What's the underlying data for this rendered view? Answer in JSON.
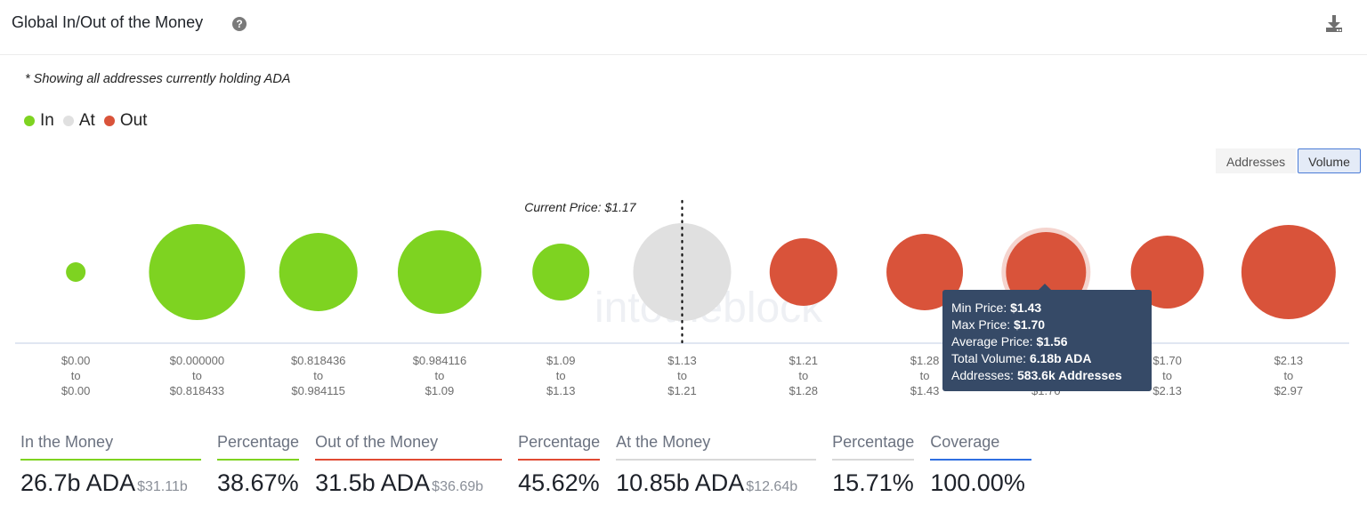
{
  "header": {
    "title": "Global In/Out of the Money",
    "help_icon": "question-circle-icon",
    "download_icon": "download-icon"
  },
  "note": "* Showing all addresses currently holding ADA",
  "legend": [
    {
      "label": "In",
      "color": "#7ed321"
    },
    {
      "label": "At",
      "color": "#e0e0e0"
    },
    {
      "label": "Out",
      "color": "#d9533a"
    }
  ],
  "toggle": {
    "options": [
      "Addresses",
      "Volume"
    ],
    "active": "Volume"
  },
  "colors": {
    "in": "#7ed321",
    "at": "#e0e0e0",
    "out": "#d9533a",
    "tooltip_bg": "#364a67",
    "coverage": "#2f6fe0"
  },
  "chart_data": {
    "type": "bubble",
    "title": "Global In/Out of the Money",
    "current_price_label": "Current Price: $1.17",
    "current_price": 1.17,
    "watermark": "intotheblock",
    "size_metric": "Total Volume (ADA, billions) — estimated from bubble area, referenced to the 6.18b tooltip value",
    "categories": [
      {
        "min": "$0.00",
        "max": "$0.00",
        "status": "in",
        "volume_b": 0.37
      },
      {
        "min": "$0.000000",
        "max": "$0.818433",
        "status": "in",
        "volume_b": 8.9
      },
      {
        "min": "$0.818436",
        "max": "$0.984115",
        "status": "in",
        "volume_b": 5.91
      },
      {
        "min": "$0.984116",
        "max": "$1.09",
        "status": "in",
        "volume_b": 6.74
      },
      {
        "min": "$1.09",
        "max": "$1.13",
        "status": "in",
        "volume_b": 3.13
      },
      {
        "min": "$1.13",
        "max": "$1.21",
        "status": "at",
        "volume_b": 9.23
      },
      {
        "min": "$1.21",
        "max": "$1.28",
        "status": "out",
        "volume_b": 4.41
      },
      {
        "min": "$1.28",
        "max": "$1.43",
        "status": "out",
        "volume_b": 5.64
      },
      {
        "min": "$1.43",
        "max": "$1.70",
        "status": "out",
        "volume_b": 6.18,
        "hovered": true
      },
      {
        "min": "$1.70",
        "max": "$2.13",
        "status": "out",
        "volume_b": 5.13
      },
      {
        "min": "$2.13",
        "max": "$2.97",
        "status": "out",
        "volume_b": 8.57
      }
    ],
    "connector": "to",
    "current_price_between_index": 5
  },
  "tooltip": {
    "rows": [
      {
        "label": "Min Price: ",
        "value": "$1.43"
      },
      {
        "label": "Max Price: ",
        "value": "$1.70"
      },
      {
        "label": "Average Price: ",
        "value": "$1.56"
      },
      {
        "label": "Total Volume: ",
        "value": "6.18b ADA"
      },
      {
        "label": "Addresses: ",
        "value": "583.6k Addresses"
      }
    ]
  },
  "stats": [
    {
      "label": "In the Money",
      "value": "26.7b ADA",
      "sub": "$31.11b",
      "color": "#7ed321"
    },
    {
      "label": "Percentage",
      "value": "38.67%",
      "sub": "",
      "color": "#7ed321"
    },
    {
      "label": "Out of the Money",
      "value": "31.5b ADA",
      "sub": "$36.69b",
      "color": "#e04a34"
    },
    {
      "label": "Percentage",
      "value": "45.62%",
      "sub": "",
      "color": "#e04a34"
    },
    {
      "label": "At the Money",
      "value": "10.85b ADA",
      "sub": "$12.64b",
      "color": "#d8d8d8"
    },
    {
      "label": "Percentage",
      "value": "15.71%",
      "sub": "",
      "color": "#d8d8d8"
    },
    {
      "label": "Coverage",
      "value": "100.00%",
      "sub": "",
      "color": "#2f6fe0"
    }
  ]
}
